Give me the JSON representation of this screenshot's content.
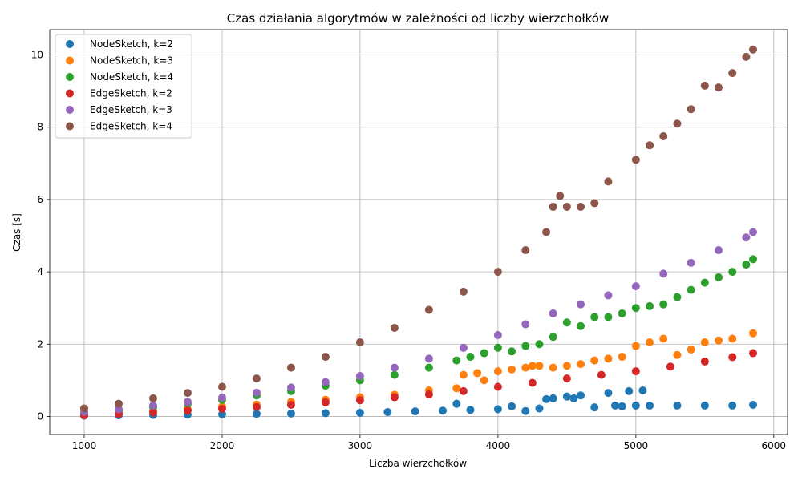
{
  "chart_data": {
    "type": "scatter",
    "title": "Czas działania algorytmów w zależności od liczby wierzchołków",
    "xlabel": "Liczba wierzchołków",
    "ylabel": "Czas [s]",
    "xlim": [
      750,
      6100
    ],
    "ylim": [
      -0.5,
      10.7
    ],
    "xticks": [
      1000,
      2000,
      3000,
      4000,
      5000,
      6000
    ],
    "yticks": [
      0,
      2,
      4,
      6,
      8,
      10
    ],
    "grid": true,
    "legend_position": "top-left",
    "series": [
      {
        "name": "NodeSketch, k=2",
        "color": "#1f77b4",
        "x": [
          1000,
          1250,
          1500,
          1750,
          2000,
          2250,
          2500,
          2750,
          3000,
          3200,
          3400,
          3600,
          3700,
          3800,
          4000,
          4100,
          4200,
          4300,
          4350,
          4400,
          4500,
          4550,
          4600,
          4700,
          4800,
          4850,
          4900,
          4950,
          5000,
          5050,
          5100,
          5300,
          5500,
          5700,
          5850
        ],
        "y": [
          0.02,
          0.03,
          0.04,
          0.05,
          0.06,
          0.07,
          0.08,
          0.09,
          0.1,
          0.12,
          0.14,
          0.16,
          0.35,
          0.18,
          0.2,
          0.28,
          0.15,
          0.22,
          0.48,
          0.5,
          0.55,
          0.5,
          0.58,
          0.25,
          0.65,
          0.3,
          0.28,
          0.7,
          0.3,
          0.72,
          0.3,
          0.3,
          0.3,
          0.3,
          0.32
        ]
      },
      {
        "name": "NodeSketch, k=3",
        "color": "#ff7f0e",
        "x": [
          1000,
          1250,
          1500,
          1750,
          2000,
          2250,
          2500,
          2750,
          3000,
          3250,
          3500,
          3700,
          3750,
          3850,
          3900,
          4000,
          4100,
          4200,
          4250,
          4300,
          4400,
          4500,
          4600,
          4700,
          4800,
          4900,
          5000,
          5100,
          5200,
          5300,
          5400,
          5500,
          5600,
          5700,
          5850
        ],
        "y": [
          0.05,
          0.1,
          0.14,
          0.2,
          0.27,
          0.33,
          0.4,
          0.46,
          0.53,
          0.6,
          0.72,
          0.78,
          1.15,
          1.2,
          1.0,
          1.25,
          1.3,
          1.35,
          1.4,
          1.4,
          1.35,
          1.4,
          1.45,
          1.55,
          1.6,
          1.65,
          1.95,
          2.05,
          2.15,
          1.7,
          1.85,
          2.05,
          2.1,
          2.15,
          2.3
        ]
      },
      {
        "name": "NodeSketch, k=4",
        "color": "#2ca02c",
        "x": [
          1000,
          1250,
          1500,
          1750,
          2000,
          2250,
          2500,
          2750,
          3000,
          3250,
          3500,
          3700,
          3800,
          3900,
          4000,
          4100,
          4200,
          4300,
          4400,
          4500,
          4600,
          4700,
          4800,
          4900,
          5000,
          5100,
          5200,
          5300,
          5400,
          5500,
          5600,
          5700,
          5800,
          5850
        ],
        "y": [
          0.08,
          0.16,
          0.25,
          0.35,
          0.46,
          0.58,
          0.7,
          0.85,
          1.0,
          1.15,
          1.35,
          1.55,
          1.65,
          1.75,
          1.9,
          1.8,
          1.95,
          2.0,
          2.2,
          2.6,
          2.5,
          2.75,
          2.75,
          2.85,
          3.0,
          3.05,
          3.1,
          3.3,
          3.5,
          3.7,
          3.85,
          4.0,
          4.2,
          4.35
        ]
      },
      {
        "name": "EdgeSketch, k=2",
        "color": "#d62728",
        "x": [
          1000,
          1250,
          1500,
          1750,
          2000,
          2250,
          2500,
          2750,
          3000,
          3250,
          3500,
          3750,
          4000,
          4250,
          4500,
          4750,
          5000,
          5250,
          5500,
          5700,
          5850
        ],
        "y": [
          0.03,
          0.07,
          0.11,
          0.16,
          0.21,
          0.26,
          0.32,
          0.39,
          0.45,
          0.53,
          0.61,
          0.7,
          0.82,
          0.93,
          1.05,
          1.15,
          1.25,
          1.38,
          1.52,
          1.64,
          1.75
        ]
      },
      {
        "name": "EdgeSketch, k=3",
        "color": "#9467bd",
        "x": [
          1000,
          1250,
          1500,
          1750,
          2000,
          2250,
          2500,
          2750,
          3000,
          3250,
          3500,
          3750,
          4000,
          4200,
          4400,
          4600,
          4800,
          5000,
          5200,
          5400,
          5600,
          5800,
          5850
        ],
        "y": [
          0.12,
          0.2,
          0.3,
          0.4,
          0.52,
          0.66,
          0.8,
          0.95,
          1.12,
          1.35,
          1.6,
          1.9,
          2.25,
          2.55,
          2.85,
          3.1,
          3.35,
          3.6,
          3.95,
          4.25,
          4.6,
          4.95,
          5.1
        ]
      },
      {
        "name": "EdgeSketch, k=4",
        "color": "#8c564b",
        "x": [
          1000,
          1250,
          1500,
          1750,
          2000,
          2250,
          2500,
          2750,
          3000,
          3250,
          3500,
          3750,
          4000,
          4200,
          4350,
          4400,
          4450,
          4500,
          4600,
          4700,
          4800,
          5000,
          5100,
          5200,
          5300,
          5400,
          5500,
          5600,
          5700,
          5800,
          5850
        ],
        "y": [
          0.22,
          0.35,
          0.5,
          0.65,
          0.82,
          1.05,
          1.35,
          1.65,
          2.05,
          2.45,
          2.95,
          3.45,
          4.0,
          4.6,
          5.1,
          5.8,
          6.1,
          5.8,
          5.8,
          5.9,
          6.5,
          7.1,
          7.5,
          7.75,
          8.1,
          8.5,
          9.15,
          9.1,
          9.5,
          9.95,
          10.15
        ]
      }
    ]
  }
}
